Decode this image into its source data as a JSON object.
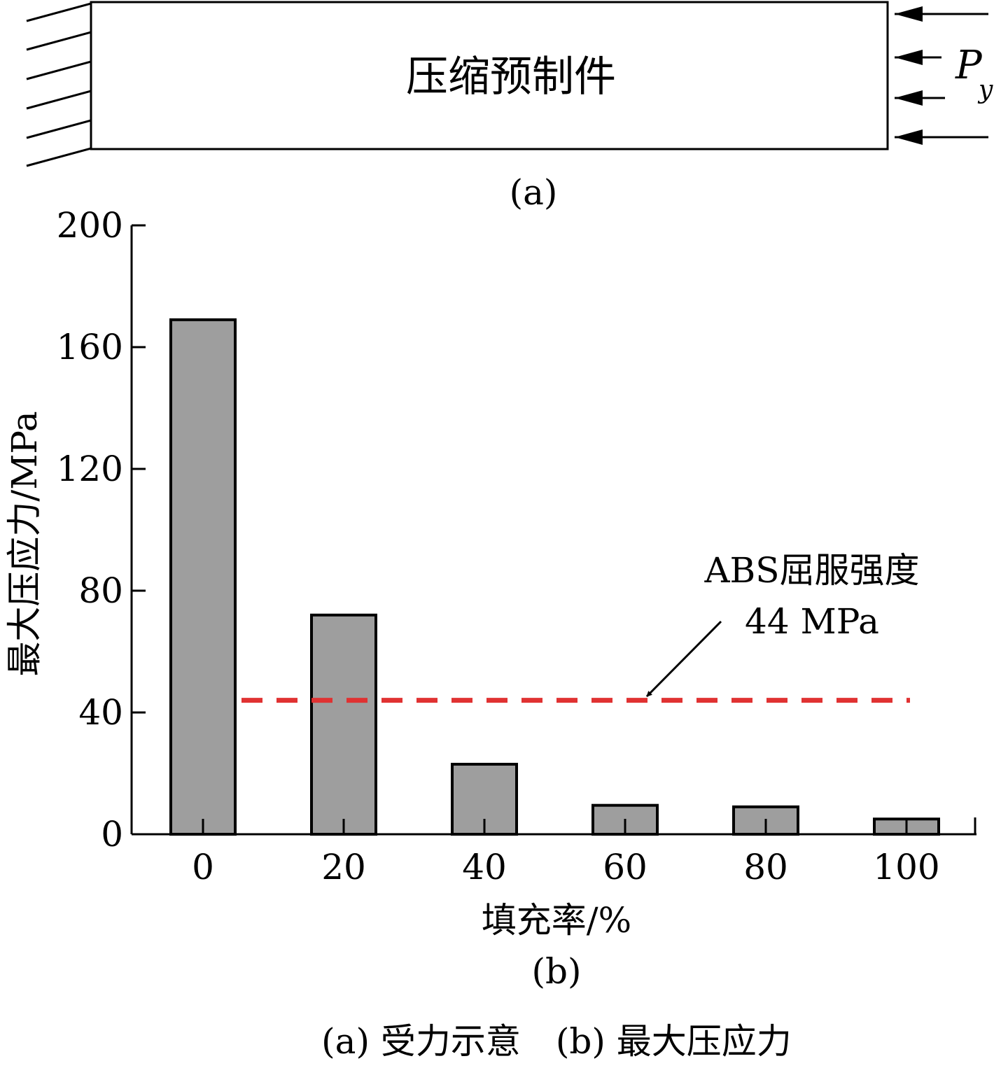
{
  "diagram": {
    "block_label": "压缩预制件",
    "load_symbol": "P",
    "load_subscript": "y",
    "panel_label": "(a)"
  },
  "chart_data": {
    "type": "bar",
    "categories": [
      "0",
      "20",
      "40",
      "60",
      "80",
      "100"
    ],
    "x": [
      0,
      20,
      40,
      60,
      80,
      100
    ],
    "values": [
      169,
      72,
      23,
      9.5,
      9,
      5
    ],
    "xlabel": "填充率/%",
    "ylabel": "最大压应力/MPa",
    "ylim": [
      0,
      200
    ],
    "yticks": [
      0,
      40,
      80,
      120,
      160,
      200
    ],
    "grid": false,
    "bar_color": "#9e9e9e",
    "reference_line": {
      "value": 44,
      "style": "dashed",
      "color": "#e03232",
      "label_line1": "ABS屈服强度",
      "label_line2": "44 MPa"
    },
    "panel_label": "(b)"
  },
  "caption": "(a) 受力示意　(b) 最大压应力"
}
